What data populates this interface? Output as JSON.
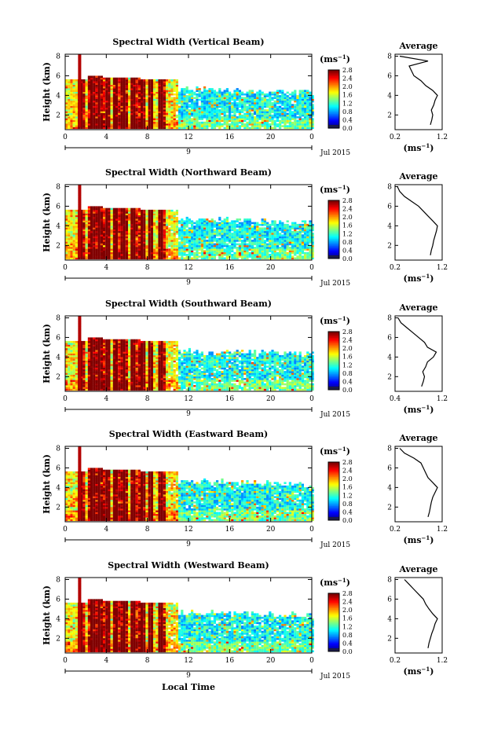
{
  "figure": {
    "xlabel_bottom": "Local Time",
    "date_label": "Jul 2015",
    "day_label": "9",
    "ylabel": "Height (km)",
    "unit_label": "(ms",
    "unit_exp": "−1",
    "avg_title": "Average",
    "x_ticks": [
      "0",
      "4",
      "8",
      "12",
      "16",
      "20",
      "0"
    ],
    "y_ticks": [
      "2",
      "4",
      "6",
      "8"
    ],
    "colorbar_ticks": [
      "0.0",
      "0.4",
      "0.8",
      "1.2",
      "1.6",
      "2.0",
      "2.4",
      "2.8"
    ]
  },
  "chart_data": [
    {
      "type": "heatmap",
      "title": "Spectral Width (Vertical Beam)",
      "x_range_hours": [
        0,
        24
      ],
      "ylim_km": [
        0.5,
        8.2
      ],
      "colorbar_range": [
        0.0,
        2.8
      ],
      "avg_profile": {
        "xlim": [
          0.2,
          1.2
        ],
        "x_ticks": [
          "0.2",
          "1.2"
        ],
        "heights_km": [
          1.0,
          1.5,
          2.0,
          2.5,
          3.0,
          3.5,
          4.0,
          4.5,
          5.0,
          5.5,
          6.0,
          6.5,
          7.0,
          7.5,
          8.0
        ],
        "values": [
          0.95,
          0.98,
          1.0,
          0.97,
          1.02,
          1.05,
          1.1,
          1.0,
          0.85,
          0.75,
          0.6,
          0.55,
          0.5,
          0.9,
          0.3
        ]
      }
    },
    {
      "type": "heatmap",
      "title": "Spectral Width (Northward Beam)",
      "x_range_hours": [
        0,
        24
      ],
      "ylim_km": [
        0.5,
        8.2
      ],
      "colorbar_range": [
        0.0,
        2.8
      ],
      "avg_profile": {
        "xlim": [
          0.2,
          1.2
        ],
        "x_ticks": [
          "0.2",
          "1.2"
        ],
        "heights_km": [
          1.0,
          1.5,
          2.0,
          2.5,
          3.0,
          3.5,
          4.0,
          4.5,
          5.0,
          5.5,
          6.0,
          6.5,
          7.0,
          7.5,
          8.0
        ],
        "values": [
          0.95,
          0.97,
          1.0,
          1.02,
          1.05,
          1.08,
          1.1,
          1.0,
          0.9,
          0.8,
          0.7,
          0.55,
          0.4,
          0.3,
          0.25
        ]
      }
    },
    {
      "type": "heatmap",
      "title": "Spectral Width (Southward Beam)",
      "x_range_hours": [
        0,
        24
      ],
      "ylim_km": [
        0.5,
        8.2
      ],
      "colorbar_range": [
        0.0,
        2.8
      ],
      "avg_profile": {
        "xlim": [
          0.4,
          1.2
        ],
        "x_ticks": [
          "0.4",
          "1.2"
        ],
        "heights_km": [
          1.0,
          1.5,
          2.0,
          2.5,
          3.0,
          3.5,
          4.0,
          4.5,
          5.0,
          5.5,
          6.0,
          6.5,
          7.0,
          7.5,
          8.0
        ],
        "values": [
          0.85,
          0.88,
          0.9,
          0.87,
          0.92,
          0.95,
          1.05,
          1.1,
          0.95,
          0.9,
          0.8,
          0.7,
          0.6,
          0.5,
          0.45
        ]
      }
    },
    {
      "type": "heatmap",
      "title": "Spectral Width (Eastward Beam)",
      "x_range_hours": [
        0,
        24
      ],
      "ylim_km": [
        0.5,
        8.2
      ],
      "colorbar_range": [
        0.0,
        2.8
      ],
      "avg_profile": {
        "xlim": [
          0.2,
          1.2
        ],
        "x_ticks": [
          "0.2",
          "1.2"
        ],
        "heights_km": [
          1.0,
          1.5,
          2.0,
          2.5,
          3.0,
          3.5,
          4.0,
          4.5,
          5.0,
          5.5,
          6.0,
          6.5,
          7.0,
          7.5,
          8.0
        ],
        "values": [
          0.9,
          0.93,
          0.95,
          0.97,
          1.0,
          1.05,
          1.1,
          1.0,
          0.9,
          0.85,
          0.8,
          0.75,
          0.6,
          0.4,
          0.3
        ]
      }
    },
    {
      "type": "heatmap",
      "title": "Spectral Width (Westward Beam)",
      "x_range_hours": [
        0,
        24
      ],
      "ylim_km": [
        0.5,
        8.2
      ],
      "colorbar_range": [
        0.0,
        2.8
      ],
      "avg_profile": {
        "xlim": [
          0.2,
          1.2
        ],
        "x_ticks": [
          "0.2",
          "1.2"
        ],
        "heights_km": [
          1.0,
          1.5,
          2.0,
          2.5,
          3.0,
          3.5,
          4.0,
          4.5,
          5.0,
          5.5,
          6.0,
          6.5,
          7.0,
          7.5,
          8.0
        ],
        "values": [
          0.9,
          0.92,
          0.95,
          0.98,
          1.02,
          1.05,
          1.1,
          1.0,
          0.92,
          0.85,
          0.8,
          0.7,
          0.6,
          0.5,
          0.4
        ]
      }
    }
  ]
}
